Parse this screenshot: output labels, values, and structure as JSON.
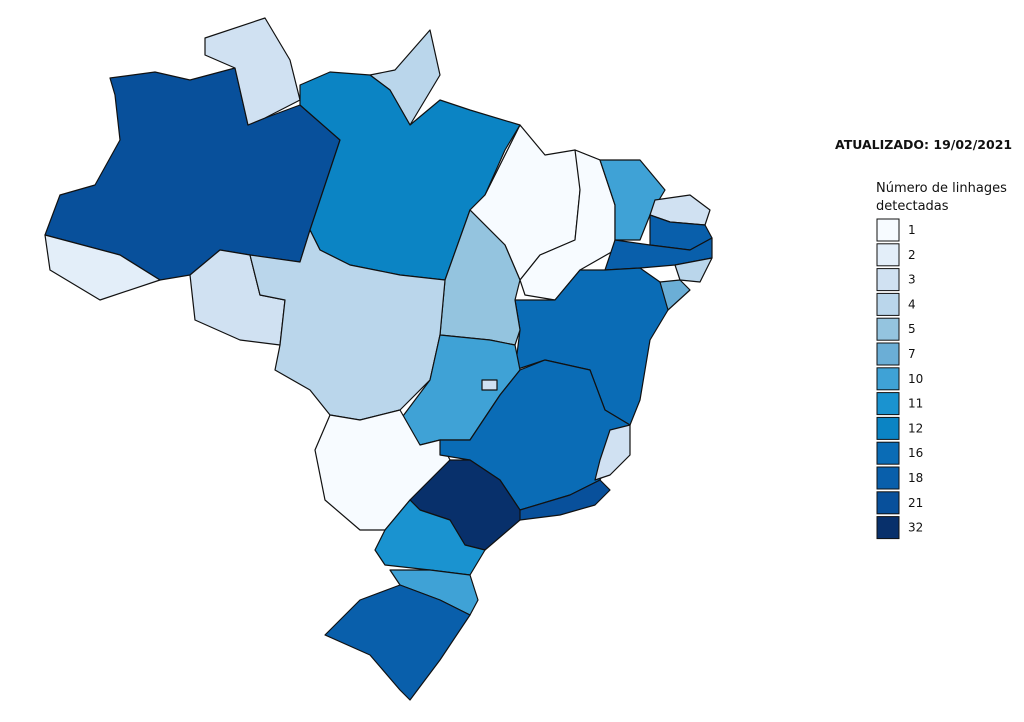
{
  "subtitle": "ATUALIZADO: 19/02/2021",
  "legend": {
    "title_lines": [
      "Número de linhages",
      "detectadas"
    ],
    "items": [
      {
        "value": 1,
        "color": "#f7fbff"
      },
      {
        "value": 2,
        "color": "#e3eef9"
      },
      {
        "value": 3,
        "color": "#d0e1f2"
      },
      {
        "value": 4,
        "color": "#bad6eb"
      },
      {
        "value": 5,
        "color": "#94c4df"
      },
      {
        "value": 7,
        "color": "#6baed6"
      },
      {
        "value": 10,
        "color": "#3fa2d6"
      },
      {
        "value": 11,
        "color": "#1a93d0"
      },
      {
        "value": 12,
        "color": "#0b84c4"
      },
      {
        "value": 16,
        "color": "#0a6cb6"
      },
      {
        "value": 18,
        "color": "#095fab"
      },
      {
        "value": 21,
        "color": "#08509b"
      },
      {
        "value": 32,
        "color": "#08306b"
      }
    ]
  },
  "regions": [
    {
      "value": 21
    },
    {
      "value": 3
    },
    {
      "value": 4
    },
    {
      "value": 12
    },
    {
      "value": 1
    },
    {
      "value": 1
    },
    {
      "value": 10
    },
    {
      "value": 3
    },
    {
      "value": 18
    },
    {
      "value": 18
    },
    {
      "value": 4
    },
    {
      "value": 7
    },
    {
      "value": 16
    },
    {
      "value": 5
    },
    {
      "value": 2
    },
    {
      "value": 3
    },
    {
      "value": 4
    },
    {
      "value": 10
    },
    {
      "value": 3
    },
    {
      "value": 1
    },
    {
      "value": 16
    },
    {
      "value": 3
    },
    {
      "value": 32
    },
    {
      "value": 21
    },
    {
      "value": 11
    },
    {
      "value": 10
    },
    {
      "value": 18
    }
  ]
}
